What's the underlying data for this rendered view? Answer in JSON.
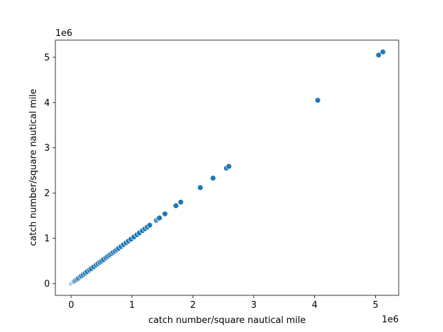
{
  "chart_data": {
    "type": "scatter",
    "title": "",
    "xlabel": "catch number/square nautical mile",
    "ylabel": "catch number/square nautical mile",
    "x_offset_text": "1e6",
    "y_offset_text": "1e6",
    "xlim": [
      -0.26,
      5.38
    ],
    "ylim": [
      -0.26,
      5.38
    ],
    "xticks": [
      0,
      1,
      2,
      3,
      4,
      5
    ],
    "yticks": [
      0,
      1,
      2,
      3,
      4,
      5
    ],
    "grid": false,
    "legend": "none",
    "marker_color": "#1f77b4",
    "marker_edge_color": "#ffffff",
    "points": [
      {
        "x": 0.0,
        "y": 0.0
      },
      {
        "x": 0.01,
        "y": 0.01
      },
      {
        "x": 0.02,
        "y": 0.02
      },
      {
        "x": 0.03,
        "y": 0.03
      },
      {
        "x": 0.04,
        "y": 0.04
      },
      {
        "x": 0.05,
        "y": 0.05
      },
      {
        "x": 0.06,
        "y": 0.06
      },
      {
        "x": 0.08,
        "y": 0.08
      },
      {
        "x": 0.1,
        "y": 0.1
      },
      {
        "x": 0.12,
        "y": 0.12
      },
      {
        "x": 0.15,
        "y": 0.15
      },
      {
        "x": 0.17,
        "y": 0.17
      },
      {
        "x": 0.2,
        "y": 0.2
      },
      {
        "x": 0.23,
        "y": 0.23
      },
      {
        "x": 0.26,
        "y": 0.26
      },
      {
        "x": 0.3,
        "y": 0.3
      },
      {
        "x": 0.33,
        "y": 0.33
      },
      {
        "x": 0.37,
        "y": 0.37
      },
      {
        "x": 0.41,
        "y": 0.41
      },
      {
        "x": 0.44,
        "y": 0.44
      },
      {
        "x": 0.47,
        "y": 0.47
      },
      {
        "x": 0.5,
        "y": 0.5
      },
      {
        "x": 0.53,
        "y": 0.53
      },
      {
        "x": 0.57,
        "y": 0.57
      },
      {
        "x": 0.6,
        "y": 0.6
      },
      {
        "x": 0.63,
        "y": 0.63
      },
      {
        "x": 0.66,
        "y": 0.66
      },
      {
        "x": 0.69,
        "y": 0.69
      },
      {
        "x": 0.72,
        "y": 0.72
      },
      {
        "x": 0.75,
        "y": 0.75
      },
      {
        "x": 0.78,
        "y": 0.78
      },
      {
        "x": 0.82,
        "y": 0.82
      },
      {
        "x": 0.86,
        "y": 0.86
      },
      {
        "x": 0.9,
        "y": 0.9
      },
      {
        "x": 0.94,
        "y": 0.94
      },
      {
        "x": 0.98,
        "y": 0.98
      },
      {
        "x": 1.03,
        "y": 1.03
      },
      {
        "x": 1.08,
        "y": 1.08
      },
      {
        "x": 1.12,
        "y": 1.12
      },
      {
        "x": 1.17,
        "y": 1.17
      },
      {
        "x": 1.21,
        "y": 1.21
      },
      {
        "x": 1.25,
        "y": 1.25
      },
      {
        "x": 1.29,
        "y": 1.29
      },
      {
        "x": 1.4,
        "y": 1.4
      },
      {
        "x": 1.43,
        "y": 1.43
      },
      {
        "x": 1.45,
        "y": 1.45
      },
      {
        "x": 1.54,
        "y": 1.54
      },
      {
        "x": 1.72,
        "y": 1.72
      },
      {
        "x": 1.8,
        "y": 1.8
      },
      {
        "x": 2.12,
        "y": 2.12
      },
      {
        "x": 2.33,
        "y": 2.33
      },
      {
        "x": 2.55,
        "y": 2.55
      },
      {
        "x": 2.59,
        "y": 2.59
      },
      {
        "x": 4.05,
        "y": 4.05
      },
      {
        "x": 5.05,
        "y": 5.05
      },
      {
        "x": 5.12,
        "y": 5.12
      }
    ]
  }
}
